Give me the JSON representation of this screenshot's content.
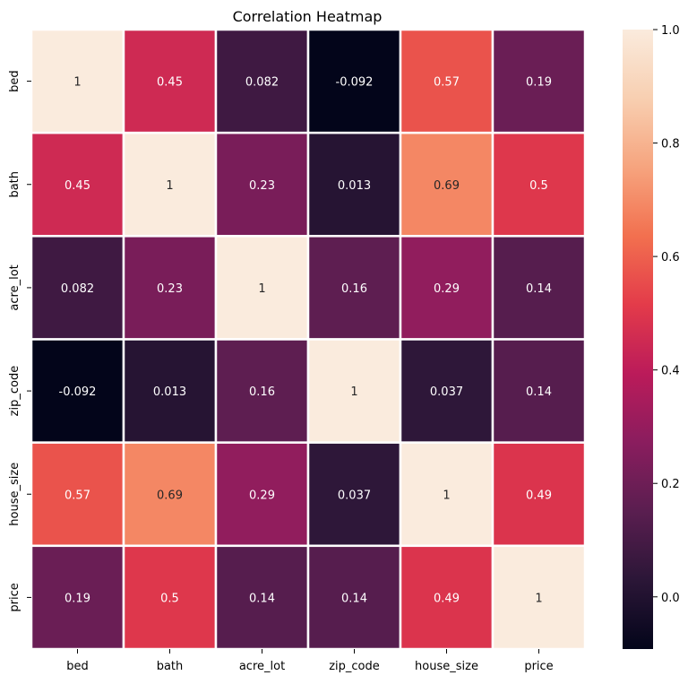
{
  "chart_data": {
    "type": "heatmap",
    "title": "Correlation Heatmap",
    "xlabel": "",
    "ylabel": "",
    "row_labels": [
      "bed",
      "bath",
      "acre_lot",
      "zip_code",
      "house_size",
      "price"
    ],
    "col_labels": [
      "bed",
      "bath",
      "acre_lot",
      "zip_code",
      "house_size",
      "price"
    ],
    "values": [
      [
        1,
        0.45,
        0.082,
        -0.092,
        0.57,
        0.19
      ],
      [
        0.45,
        1,
        0.23,
        0.013,
        0.69,
        0.5
      ],
      [
        0.082,
        0.23,
        1,
        0.16,
        0.29,
        0.14
      ],
      [
        -0.092,
        0.013,
        0.16,
        1,
        0.037,
        0.14
      ],
      [
        0.57,
        0.69,
        0.29,
        0.037,
        1,
        0.49
      ],
      [
        0.19,
        0.5,
        0.14,
        0.14,
        0.49,
        1
      ]
    ],
    "value_labels": [
      [
        "1",
        "0.45",
        "0.082",
        "-0.092",
        "0.57",
        "0.19"
      ],
      [
        "0.45",
        "1",
        "0.23",
        "0.013",
        "0.69",
        "0.5"
      ],
      [
        "0.082",
        "0.23",
        "1",
        "0.16",
        "0.29",
        "0.14"
      ],
      [
        "-0.092",
        "0.013",
        "0.16",
        "1",
        "0.037",
        "0.14"
      ],
      [
        "0.57",
        "0.69",
        "0.29",
        "0.037",
        "1",
        "0.49"
      ],
      [
        "0.19",
        "0.5",
        "0.14",
        "0.14",
        "0.49",
        "1"
      ]
    ],
    "colorscale": {
      "name": "rocket",
      "range": [
        -0.092,
        1.0
      ],
      "ticks": [
        1.0,
        0.8,
        0.6,
        0.4,
        0.2,
        0.0
      ],
      "tick_labels": [
        "1.0",
        "0.8",
        "0.6",
        "0.4",
        "0.2",
        "0.0"
      ],
      "stops": [
        "#03051a",
        "#2b1637",
        "#5a1e50",
        "#8a1d5e",
        "#bb1b5a",
        "#e33b4a",
        "#f2704f",
        "#f6a47e",
        "#f8cfb1",
        "#faebdd"
      ]
    },
    "cell_separator_color": "#ffffff",
    "grid": false,
    "legend": "colorbar-right"
  }
}
